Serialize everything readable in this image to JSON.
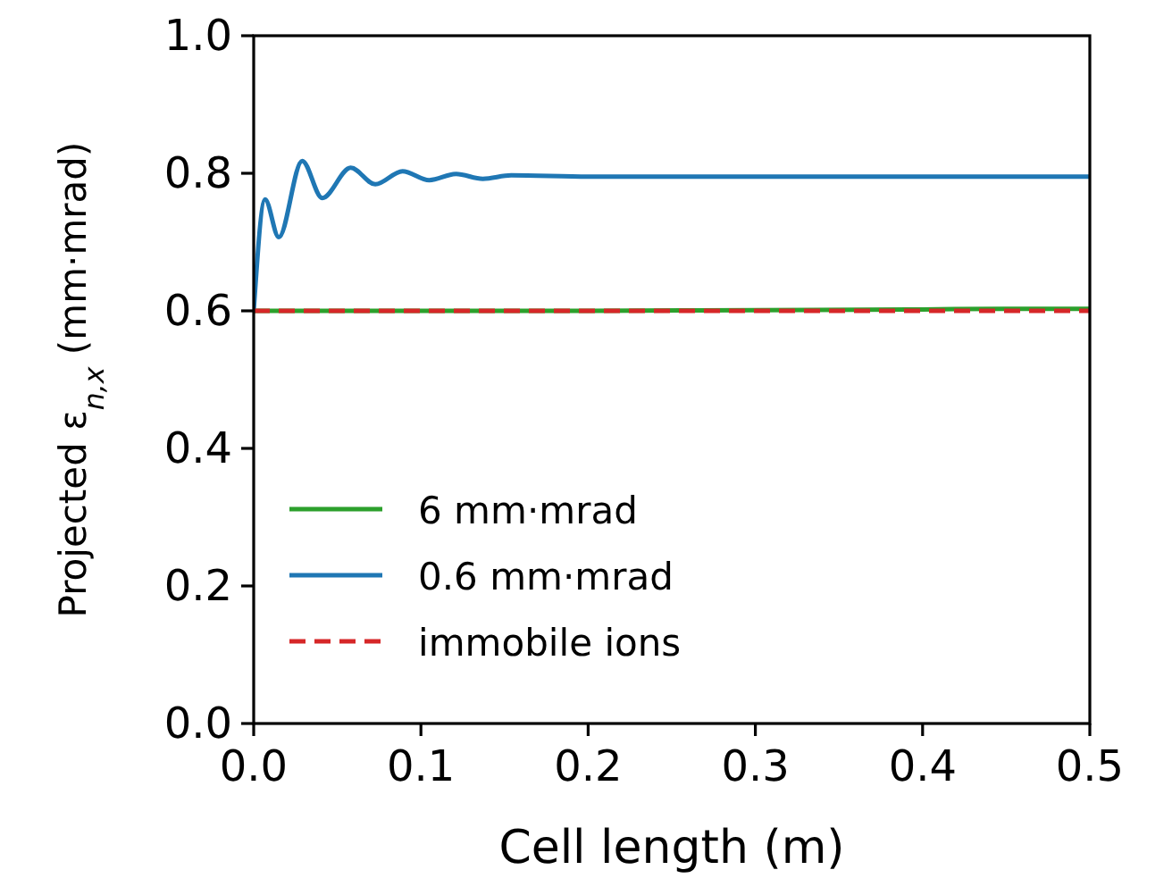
{
  "chart_data": {
    "type": "line",
    "xlabel": "Cell length (m)",
    "ylabel": "Projected ε$_{n,x}$ (mm·mrad)",
    "xlim": [
      0,
      0.5
    ],
    "ylim": [
      0,
      1
    ],
    "xticks": [
      {
        "value": 0,
        "label": "0.0"
      },
      0.1,
      0.2,
      0.3,
      0.4,
      0.5
    ],
    "yticks": [
      {
        "value": 0,
        "label": "0.0"
      },
      0.2,
      0.4,
      0.6,
      0.8,
      {
        "value": 1,
        "label": "1.0"
      }
    ],
    "legend": "bottom left",
    "grid": false,
    "series": [
      {
        "name": "6 mm·mrad",
        "color": "#2ca02c",
        "x": [
          0,
          0.1,
          0.2,
          0.3,
          0.4,
          0.45,
          0.5
        ],
        "values": [
          0.6,
          0.6,
          0.6,
          0.601,
          0.602,
          0.603,
          0.603
        ]
      },
      {
        "name": "0.6 mm·mrad",
        "color": "#1f77b4",
        "x": [
          0,
          0.0068,
          0.015,
          0.029,
          0.041,
          0.058,
          0.0727,
          0.089,
          0.105,
          0.121,
          0.137,
          0.154,
          0.2,
          0.3,
          0.4,
          0.5
        ],
        "values": [
          0.6,
          0.762,
          0.707,
          0.818,
          0.764,
          0.808,
          0.784,
          0.803,
          0.79,
          0.799,
          0.792,
          0.797,
          0.795,
          0.795,
          0.795,
          0.795
        ]
      },
      {
        "name": "immobile ions",
        "color": "#d62728",
        "line_style": "dashed",
        "x": [
          0,
          0.5
        ],
        "values": [
          0.6,
          0.6
        ]
      }
    ]
  }
}
